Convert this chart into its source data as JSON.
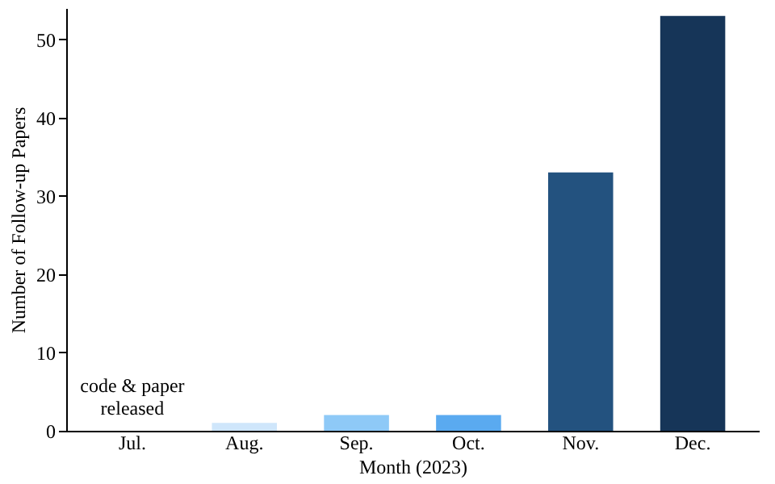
{
  "chart_data": {
    "type": "bar",
    "xlabel": "Month (2023)",
    "ylabel": "Number of Follow-up Papers",
    "categories": [
      "Jul.",
      "Aug.",
      "Sep.",
      "Oct.",
      "Nov.",
      "Dec."
    ],
    "values": [
      0,
      1,
      2,
      2,
      33,
      53
    ],
    "colors": [
      "#cfe6fb",
      "#cfe6fb",
      "#8ec9f7",
      "#5aaaf0",
      "#23527f",
      "#163558"
    ],
    "ylim": [
      0,
      54
    ],
    "yticks": [
      0,
      10,
      20,
      30,
      40,
      50
    ],
    "grid": false,
    "legend": false,
    "annotations": [
      {
        "text": "code & paper\nreleased",
        "x": "Jul.",
        "y": 0
      }
    ]
  }
}
